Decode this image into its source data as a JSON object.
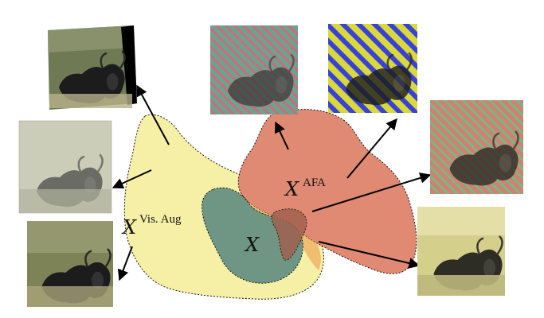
{
  "labels": {
    "visaug_base": "X",
    "visaug_sup": "Vis. Aug",
    "afa_base": "X",
    "afa_sup": "AFA",
    "x_center": "X"
  },
  "images": [
    {
      "name": "thumb-rotated",
      "type": "rotated",
      "tint": "#6f7a55"
    },
    {
      "name": "thumb-sketch",
      "type": "sketch",
      "tint": "#c9cbb8"
    },
    {
      "name": "thumb-original-left",
      "type": "original",
      "tint": "#7d8257"
    },
    {
      "name": "thumb-stripes-green",
      "type": "stripes",
      "stripeA": "#6aa58a",
      "stripeB": "#c96a87"
    },
    {
      "name": "thumb-stripes-blue",
      "type": "stripes-blue",
      "stripeA": "#e0e01a",
      "stripeB": "#3a41d8"
    },
    {
      "name": "thumb-stripes-red",
      "type": "stripes",
      "stripeA": "#d18073",
      "stripeB": "#7ab87f"
    },
    {
      "name": "thumb-sepia",
      "type": "sepia",
      "tint": "#d4cf8a"
    }
  ],
  "colors": {
    "yellow_region": "#f6f0a6",
    "red_region": "#e08a73",
    "teal_region": "#6f9684",
    "overlap_region": "#b07a5e",
    "arrow": "#000000"
  }
}
